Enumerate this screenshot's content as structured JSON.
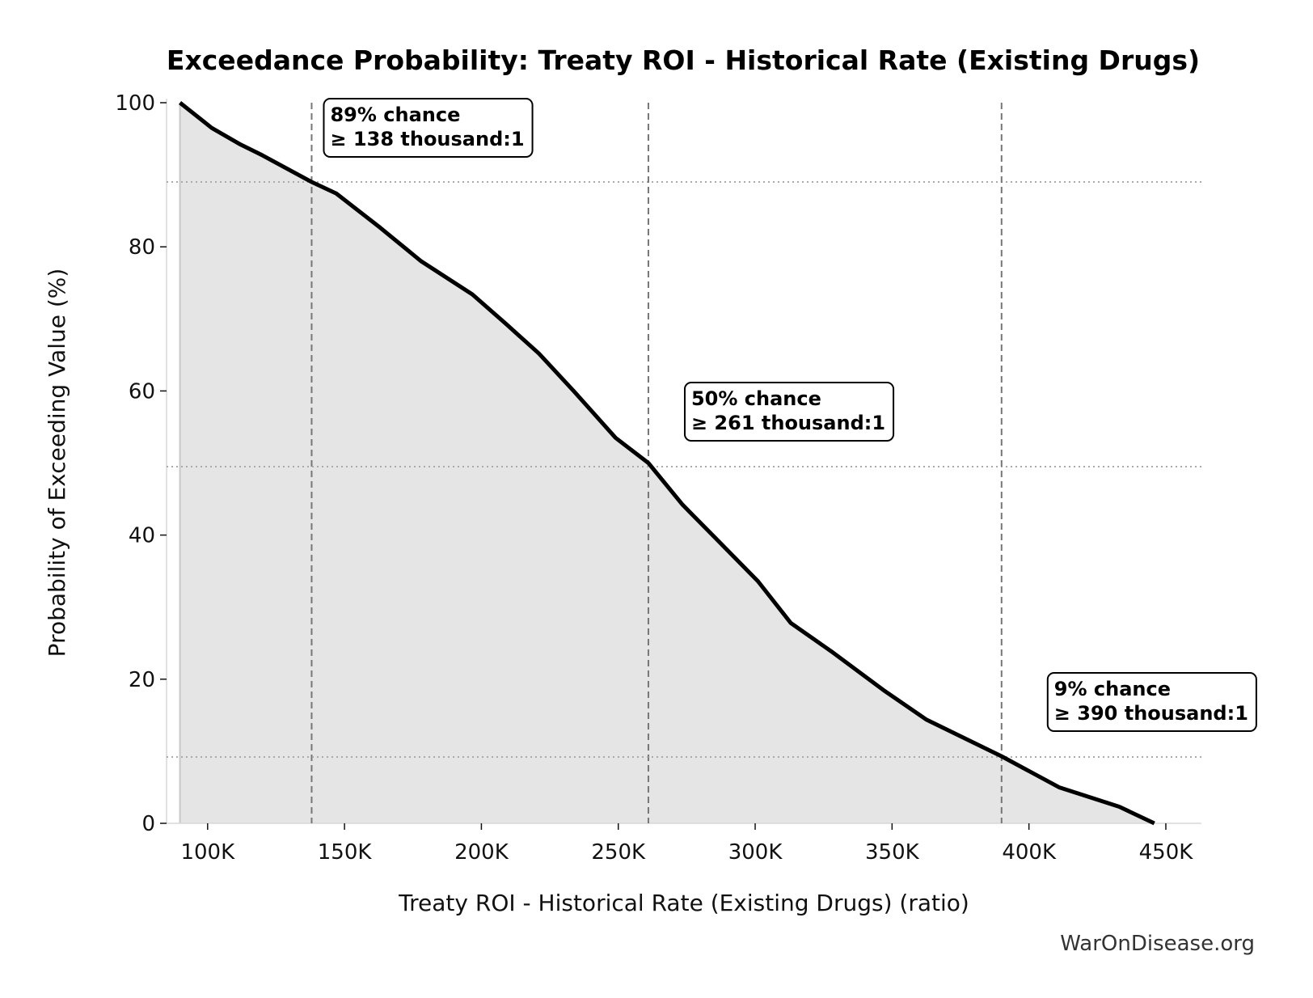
{
  "chart_data": {
    "type": "area",
    "title": "Exceedance Probability: Treaty ROI - Historical Rate (Existing Drugs)",
    "xlabel": "Treaty ROI - Historical Rate (Existing Drugs) (ratio)",
    "ylabel": "Probability of Exceeding Value (%)",
    "xlim": [
      85000,
      463000
    ],
    "ylim": [
      0,
      100
    ],
    "x_ticks": [
      100000,
      150000,
      200000,
      250000,
      300000,
      350000,
      400000,
      450000
    ],
    "x_tick_labels": [
      "100K",
      "150K",
      "200K",
      "250K",
      "300K",
      "350K",
      "400K",
      "450K"
    ],
    "y_ticks": [
      0,
      20,
      40,
      60,
      80,
      100
    ],
    "y_tick_labels": [
      "0",
      "20",
      "40",
      "60",
      "80",
      "100"
    ],
    "grid": false,
    "line_color": "#000000",
    "fill_color": "#e5e5e5",
    "series": [
      {
        "x": [
          89900,
          101500,
          112000,
          120000,
          138000,
          147000,
          162900,
          178000,
          196700,
          209000,
          221000,
          233700,
          249000,
          261000,
          273500,
          285700,
          301000,
          313000,
          328400,
          346800,
          362500,
          390000,
          411000,
          433000,
          445800
        ],
        "y": [
          100,
          96.5,
          94.2,
          92.7,
          89,
          87.4,
          82.7,
          78,
          73.4,
          69.3,
          65.2,
          60,
          53.5,
          50,
          44.2,
          39.5,
          33.6,
          27.8,
          23.7,
          18.5,
          14.4,
          9.3,
          5,
          2.3,
          0
        ]
      }
    ],
    "annotations": [
      {
        "x": 138000,
        "prob": 89,
        "line1": "89% chance",
        "line2": "≥ 138 thousand:1"
      },
      {
        "x": 261000,
        "prob": 49.5,
        "line1": "50% chance",
        "line2": "≥ 261 thousand:1"
      },
      {
        "x": 390000,
        "prob": 9.2,
        "line1": "9% chance",
        "line2": "≥ 390 thousand:1"
      }
    ],
    "watermark": "WarOnDisease.org"
  }
}
